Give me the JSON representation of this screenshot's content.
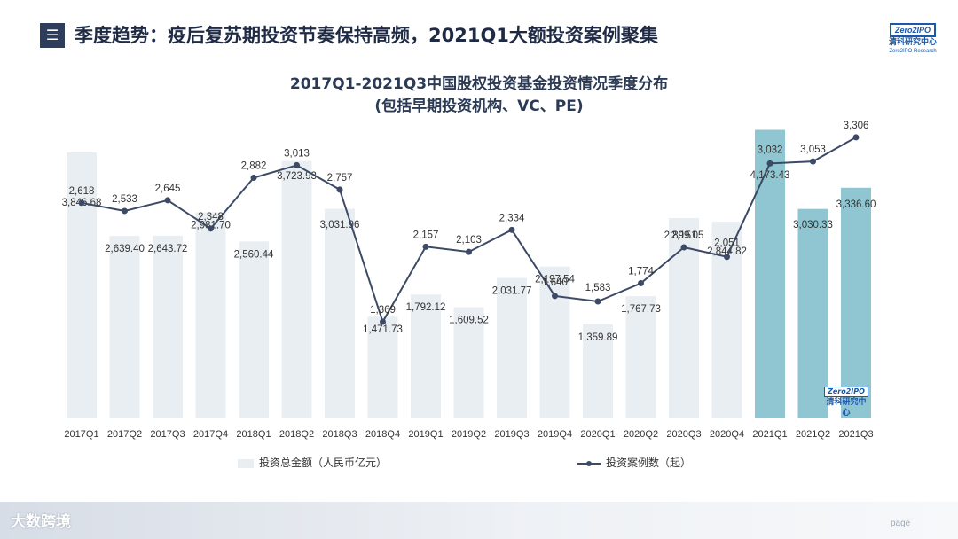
{
  "header": {
    "icon": "list-icon",
    "title": "季度趋势：疫后复苏期投资节奏保持高频，2021Q1大额投资案例聚集"
  },
  "logo": {
    "brand": "Zero2IPO",
    "cn": "清科研究中心",
    "en": "Zero2IPO Research"
  },
  "watermark": {
    "brand": "Zero2IPO",
    "cn": "清科研究中心"
  },
  "footer": {
    "brand": "大数跨境",
    "page": "page"
  },
  "colors": {
    "bar": "#e9eef3",
    "bar_highlight": "#8fc6d1",
    "line": "#3d4a66",
    "text": "#333333"
  },
  "chart_data": {
    "type": "bar",
    "title": "2017Q1-2021Q3中国股权投资基金投资情况季度分布",
    "subtitle": "(包括早期投资机构、VC、PE)",
    "categories": [
      "2017Q1",
      "2017Q2",
      "2017Q3",
      "2017Q4",
      "2018Q1",
      "2018Q2",
      "2018Q3",
      "2018Q4",
      "2019Q1",
      "2019Q2",
      "2019Q3",
      "2019Q4",
      "2020Q1",
      "2020Q2",
      "2020Q3",
      "2020Q4",
      "2021Q1",
      "2021Q2",
      "2021Q3"
    ],
    "series": [
      {
        "name": "投资总金额（人民币亿元）",
        "type": "bar",
        "values": [
          3846.68,
          2639.4,
          2643.72,
          2981.7,
          2560.44,
          3723.93,
          3031.96,
          1471.73,
          1792.12,
          1609.52,
          2031.77,
          2197.54,
          1359.89,
          1767.73,
          2899.05,
          2844.82,
          4173.43,
          3030.33,
          3336.6
        ],
        "labels": [
          "3,846.68",
          "2,639.40",
          "2,643.72",
          "2,981.70",
          "2,560.44",
          "3,723.93",
          "3,031.96",
          "1,471.73",
          "1,792.12",
          "1,609.52",
          "2,031.77",
          "2,197.54",
          "1,359.89",
          "1,767.73",
          "2,899.05",
          "2,844.82",
          "4,173.43",
          "3,030.33",
          "3,336.60"
        ],
        "highlight_categories": [
          "2021Q1",
          "2021Q2",
          "2021Q3"
        ]
      },
      {
        "name": "投资案例数（起）",
        "type": "line",
        "values": [
          2618,
          2533,
          2645,
          2348,
          2882,
          3013,
          2757,
          1369,
          2157,
          2103,
          2334,
          1640,
          1583,
          1774,
          2151,
          2051,
          3032,
          3053,
          3306
        ],
        "labels": [
          "2,618",
          "2,533",
          "2,645",
          "2,348",
          "2,882",
          "3,013",
          "2,757",
          "1,369",
          "2,157",
          "2,103",
          "2,334",
          "1,640",
          "1,583",
          "1,774",
          "2,151",
          "2,051",
          "3,032",
          "3,053",
          "3,306"
        ]
      }
    ],
    "legend": "bottom"
  }
}
